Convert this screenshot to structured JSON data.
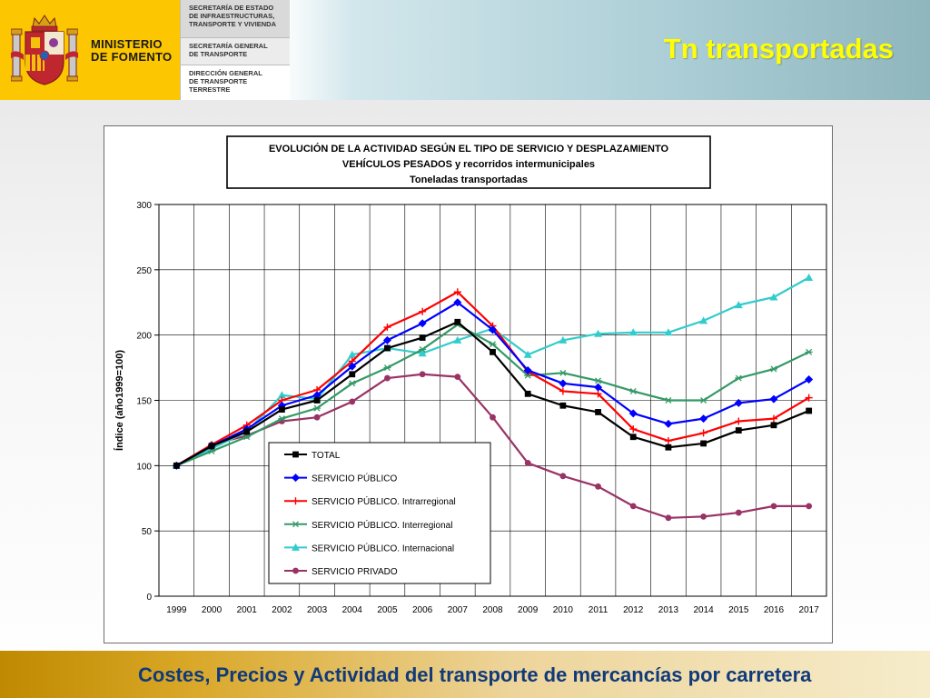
{
  "header": {
    "ministry_line1": "MINISTERIO",
    "ministry_line2": "DE FOMENTO",
    "org_boxes": [
      [
        "SECRETARÍA DE ESTADO",
        "DE INFRAESTRUCTURAS,",
        "TRANSPORTE Y VIVIENDA"
      ],
      [
        "SECRETARÍA GENERAL",
        "DE TRANSPORTE"
      ],
      [
        "DIRECCIÓN GENERAL",
        "DE TRANSPORTE",
        "TERRESTRE"
      ]
    ],
    "slide_title": "Tn transportadas"
  },
  "footer": {
    "text": "Costes, Precios y Actividad del transporte de mercancías por carretera"
  },
  "colors": {
    "brand_yellow": "#fcc600",
    "title_yellow": "#ffff00",
    "footer_text": "#103a7a"
  },
  "chart_data": {
    "type": "line",
    "title_lines": [
      "EVOLUCIÓN DE LA ACTIVIDAD SEGÚN EL TIPO DE SERVICIO Y DESPLAZAMIENTO",
      "VEHÍCULOS PESADOS y recorridos intermunicipales",
      "Toneladas transportadas"
    ],
    "xlabel": "",
    "ylabel": "Índice (año1999=100)",
    "ylim": [
      0,
      300
    ],
    "yticks": [
      0,
      50,
      100,
      150,
      200,
      250,
      300
    ],
    "grid": true,
    "legend_position": "inside-bottom-center",
    "x": [
      "1999",
      "2000",
      "2001",
      "2002",
      "2003",
      "2004",
      "2005",
      "2006",
      "2007",
      "2008",
      "2009",
      "2010",
      "2011",
      "2012",
      "2013",
      "2014",
      "2015",
      "2016",
      "2017"
    ],
    "series": [
      {
        "name": "TOTAL",
        "color": "#000000",
        "marker": "square",
        "values": [
          100,
          115,
          126,
          143,
          150,
          170,
          190,
          198,
          210,
          187,
          155,
          146,
          141,
          122,
          114,
          117,
          127,
          131,
          142
        ]
      },
      {
        "name": "SERVICIO PÚBLICO",
        "color": "#0000ff",
        "marker": "diamond",
        "values": [
          100,
          115,
          128,
          146,
          154,
          176,
          196,
          209,
          225,
          204,
          173,
          163,
          160,
          140,
          132,
          136,
          148,
          151,
          166
        ]
      },
      {
        "name": "SERVICIO PÚBLICO. Intrarregional",
        "color": "#ff0000",
        "marker": "plus",
        "values": [
          100,
          116,
          131,
          150,
          158,
          180,
          206,
          218,
          233,
          207,
          172,
          157,
          155,
          128,
          119,
          125,
          134,
          136,
          152
        ]
      },
      {
        "name": "SERVICIO PÚBLICO. Interregional",
        "color": "#339966",
        "marker": "star",
        "values": [
          100,
          111,
          122,
          136,
          144,
          163,
          175,
          189,
          208,
          193,
          169,
          171,
          165,
          157,
          150,
          150,
          167,
          174,
          187
        ]
      },
      {
        "name": "SERVICIO PÚBLICO. Internacional",
        "color": "#33cccc",
        "marker": "triangle",
        "values": [
          100,
          113,
          126,
          154,
          151,
          185,
          190,
          186,
          196,
          205,
          185,
          196,
          201,
          202,
          202,
          211,
          223,
          229,
          244
        ]
      },
      {
        "name": "SERVICIO PRIVADO",
        "color": "#993366",
        "marker": "circle",
        "values": [
          100,
          116,
          123,
          134,
          137,
          149,
          167,
          170,
          168,
          137,
          102,
          92,
          84,
          69,
          60,
          61,
          64,
          69,
          69
        ]
      }
    ]
  }
}
